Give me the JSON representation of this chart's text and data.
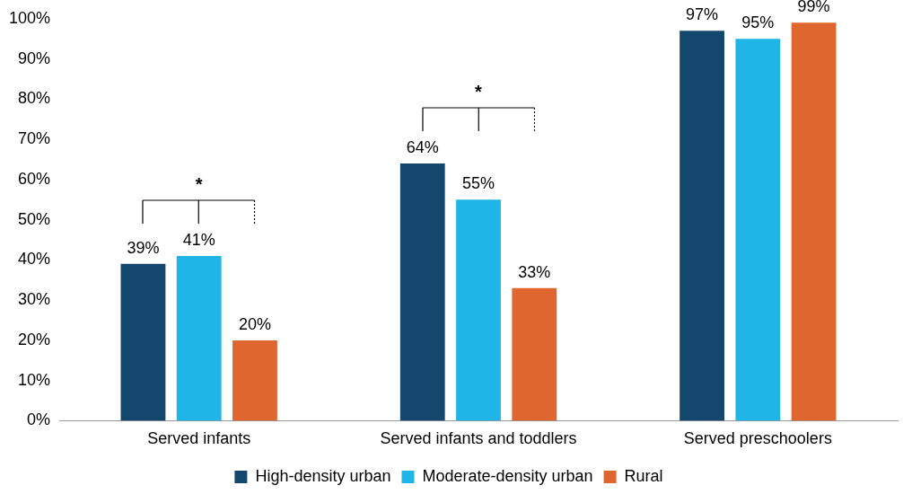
{
  "chart_data": {
    "type": "bar",
    "categories": [
      "Served infants",
      "Served infants and toddlers",
      "Served preschoolers"
    ],
    "series": [
      {
        "name": "High-density urban",
        "color": "#14476e",
        "values": [
          39,
          64,
          97
        ]
      },
      {
        "name": "Moderate-density urban",
        "color": "#1fb5e6",
        "values": [
          41,
          55,
          95
        ]
      },
      {
        "name": "Rural",
        "color": "#e0662f",
        "values": [
          20,
          33,
          99
        ]
      }
    ],
    "ylim": [
      0,
      100
    ],
    "yticks": [
      {
        "value": 0,
        "label": "0%"
      },
      {
        "value": 10,
        "label": "10%"
      },
      {
        "value": 20,
        "label": "20%"
      },
      {
        "value": 30,
        "label": "30%"
      },
      {
        "value": 40,
        "label": "40%"
      },
      {
        "value": 50,
        "label": "50%"
      },
      {
        "value": 60,
        "label": "60%"
      },
      {
        "value": 70,
        "label": "70%"
      },
      {
        "value": 80,
        "label": "80%"
      },
      {
        "value": 90,
        "label": "90%"
      },
      {
        "value": 100,
        "label": "100%"
      }
    ],
    "value_labels": [
      [
        "39%",
        "64%",
        "97%"
      ],
      [
        "41%",
        "55%",
        "95%"
      ],
      [
        "20%",
        "33%",
        "99%"
      ]
    ],
    "annotations": [
      "*",
      "*"
    ],
    "grid": false,
    "legend": "bottom"
  }
}
